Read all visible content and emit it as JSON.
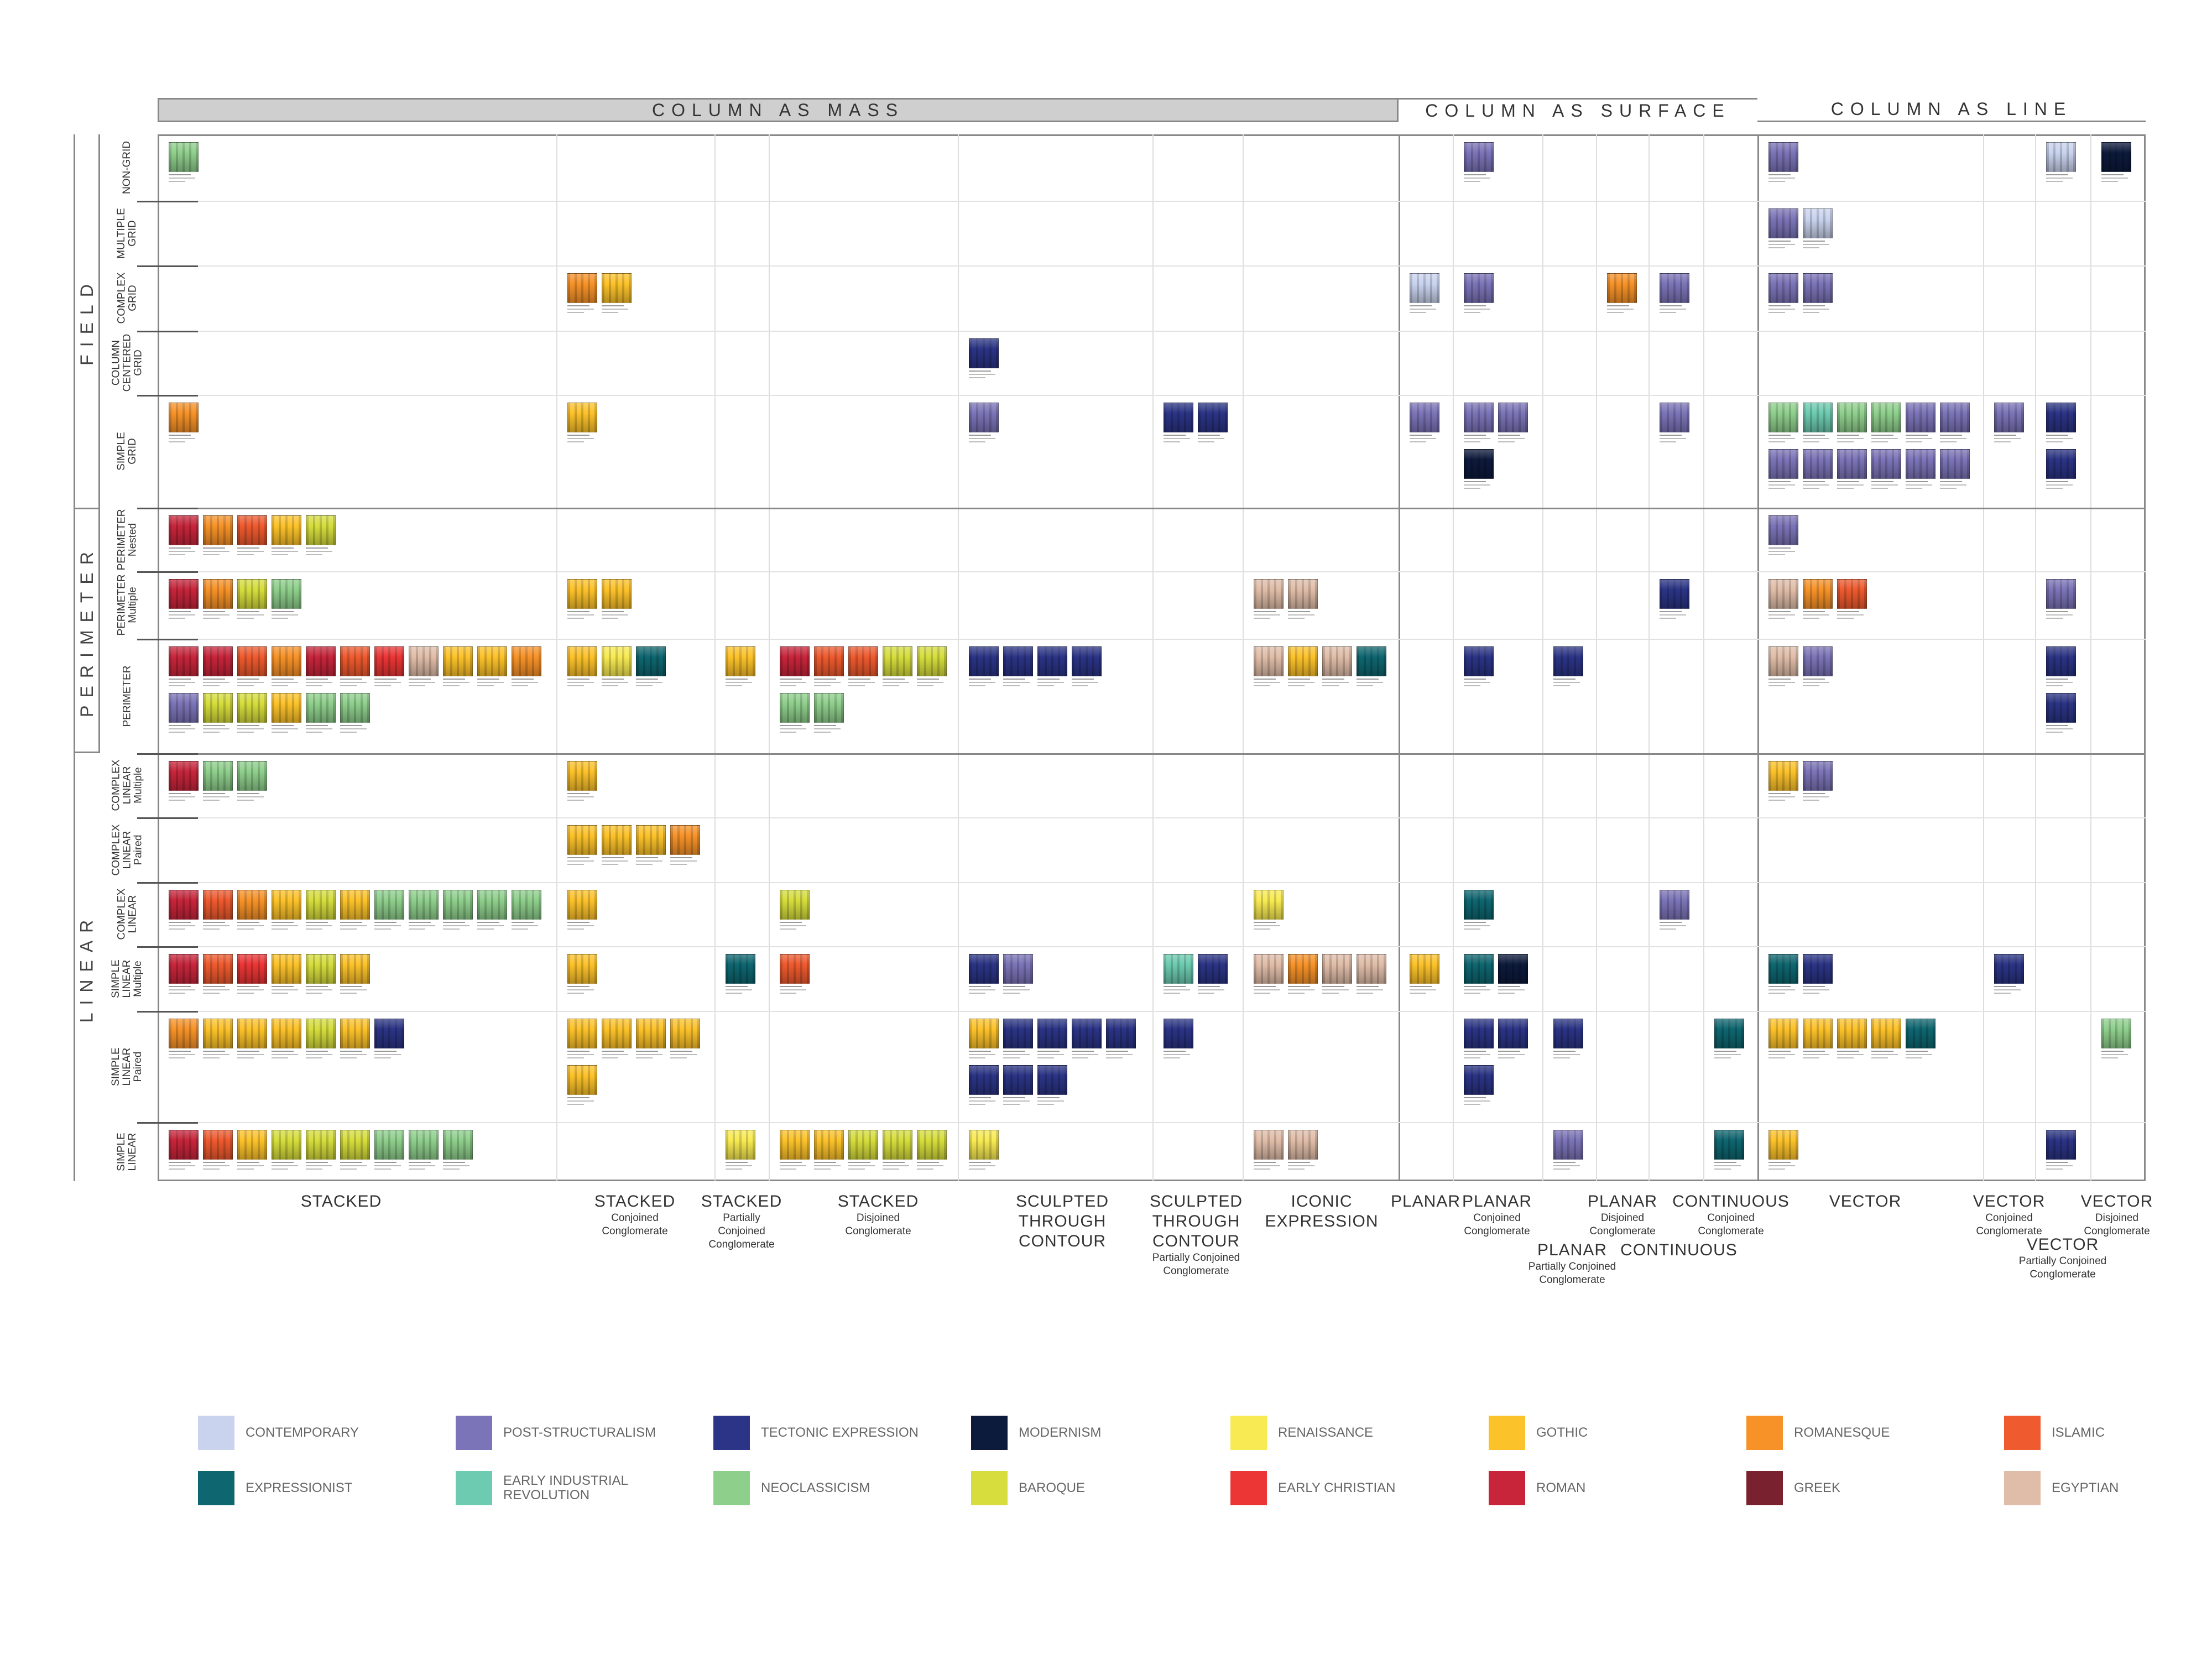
{
  "headers": {
    "mass": "COLUMN AS MASS",
    "surface": "COLUMN AS SURFACE",
    "line": "COLUMN AS LINE"
  },
  "groups": {
    "field": "FIELD",
    "perimeter": "PERIMETER",
    "linear": "LINEAR"
  },
  "rows": [
    {
      "label": "NON-GRID"
    },
    {
      "label": "MULTIPLE\nGRID"
    },
    {
      "label": "COMPLEX\nGRID"
    },
    {
      "label": "COLUMN\nCENTERED\nGRID"
    },
    {
      "label": "SIMPLE GRID"
    },
    {
      "label": "PERIMETER\nNested"
    },
    {
      "label": "PERIMETER\nMultiple"
    },
    {
      "label": "PERIMETER"
    },
    {
      "label": "COMPLEX\nLINEAR\nMultiple"
    },
    {
      "label": "COMPLEX\nLINEAR\nPaired"
    },
    {
      "label": "COMPLEX\nLINEAR"
    },
    {
      "label": "SIMPLE\nLINEAR\nMultiple"
    },
    {
      "label": "SIMPLE\nLINEAR\nPaired"
    },
    {
      "label": "SIMPLE\nLINEAR"
    }
  ],
  "columns": [
    {
      "main": "STACKED",
      "sub": ""
    },
    {
      "main": "STACKED",
      "sub": "Conjoined\nConglomerate"
    },
    {
      "main": "STACKED",
      "sub": "Partially\nConjoined\nConglomerate"
    },
    {
      "main": "STACKED",
      "sub": "Disjoined\nConglomerate"
    },
    {
      "main": "SCULPTED\nTHROUGH\nCONTOUR",
      "sub": ""
    },
    {
      "main": "SCULPTED\nTHROUGH\nCONTOUR",
      "sub": "Partially Conjoined\nConglomerate"
    },
    {
      "main": "ICONIC\nEXPRESSION",
      "sub": ""
    },
    {
      "main": "PLANAR",
      "sub": ""
    },
    {
      "main": "PLANAR",
      "sub": "Conjoined\nConglomerate"
    },
    {
      "main": "PLANAR",
      "sub": "Partially Conjoined\nConglomerate"
    },
    {
      "main": "PLANAR",
      "sub": "Disjoined\nConglomerate"
    },
    {
      "main": "CONTINUOUS",
      "sub": ""
    },
    {
      "main": "CONTINUOUS",
      "sub": "Conjoined\nConglomerate"
    },
    {
      "main": "VECTOR",
      "sub": ""
    },
    {
      "main": "VECTOR",
      "sub": "Conjoined\nConglomerate"
    },
    {
      "main": "VECTOR",
      "sub": "Partially Conjoined\nConglomerate"
    },
    {
      "main": "VECTOR",
      "sub": "Disjoined\nConglomerate"
    }
  ],
  "legend": [
    {
      "label": "CONTEMPORARY",
      "color": "#c9d3ee"
    },
    {
      "label": "POST-STRUCTURALISM",
      "color": "#7b74b8"
    },
    {
      "label": "TECTONIC EXPRESSION",
      "color": "#2b3486"
    },
    {
      "label": "MODERNISM",
      "color": "#0c1a3c"
    },
    {
      "label": "RENAISSANCE",
      "color": "#f8ea52"
    },
    {
      "label": "GOTHIC",
      "color": "#fcc22a"
    },
    {
      "label": "ROMANESQUE",
      "color": "#f79228"
    },
    {
      "label": "ISLAMIC",
      "color": "#ef5a2e"
    },
    {
      "label": "EXPRESSIONIST",
      "color": "#0e6670"
    },
    {
      "label": "EARLY INDUSTRIAL\nREVOLUTION",
      "color": "#6ccbb0"
    },
    {
      "label": "NEOCLASSICISM",
      "color": "#8fcf8c"
    },
    {
      "label": "BAROQUE",
      "color": "#d6dd3c"
    },
    {
      "label": "EARLY CHRISTIAN",
      "color": "#ec3535"
    },
    {
      "label": "ROMAN",
      "color": "#c8253b"
    },
    {
      "label": "GREEK",
      "color": "#7a2130"
    },
    {
      "label": "EGYPTIAN",
      "color": "#e0bda8"
    }
  ],
  "cells": [
    {
      "row": 0,
      "col": 0,
      "styles": [
        "NEOCLASSICISM"
      ]
    },
    {
      "row": 0,
      "col": 8,
      "styles": [
        "POST-STRUCTURALISM"
      ]
    },
    {
      "row": 0,
      "col": 13,
      "styles": [
        "POST-STRUCTURALISM"
      ]
    },
    {
      "row": 0,
      "col": 15,
      "styles": [
        "CONTEMPORARY"
      ]
    },
    {
      "row": 0,
      "col": 16,
      "styles": [
        "MODERNISM"
      ]
    },
    {
      "row": 1,
      "col": 13,
      "styles": [
        "POST-STRUCTURALISM",
        "CONTEMPORARY"
      ]
    },
    {
      "row": 2,
      "col": 1,
      "styles": [
        "ROMANESQUE",
        "GOTHIC"
      ]
    },
    {
      "row": 2,
      "col": 7,
      "styles": [
        "CONTEMPORARY"
      ]
    },
    {
      "row": 2,
      "col": 8,
      "styles": [
        "POST-STRUCTURALISM"
      ]
    },
    {
      "row": 2,
      "col": 10,
      "styles": [
        "ROMANESQUE"
      ]
    },
    {
      "row": 2,
      "col": 11,
      "styles": [
        "POST-STRUCTURALISM"
      ]
    },
    {
      "row": 2,
      "col": 13,
      "styles": [
        "POST-STRUCTURALISM",
        "POST-STRUCTURALISM"
      ]
    },
    {
      "row": 3,
      "col": 4,
      "styles": [
        "TECTONIC EXPRESSION"
      ]
    },
    {
      "row": 4,
      "col": 0,
      "styles": [
        "ROMANESQUE"
      ]
    },
    {
      "row": 4,
      "col": 1,
      "styles": [
        "GOTHIC"
      ]
    },
    {
      "row": 4,
      "col": 4,
      "styles": [
        "POST-STRUCTURALISM"
      ]
    },
    {
      "row": 4,
      "col": 5,
      "styles": [
        "TECTONIC EXPRESSION",
        "TECTONIC EXPRESSION"
      ]
    },
    {
      "row": 4,
      "col": 7,
      "styles": [
        "POST-STRUCTURALISM"
      ]
    },
    {
      "row": 4,
      "col": 8,
      "styles": [
        "POST-STRUCTURALISM",
        "POST-STRUCTURALISM",
        "MODERNISM"
      ]
    },
    {
      "row": 4,
      "col": 11,
      "styles": [
        "POST-STRUCTURALISM"
      ]
    },
    {
      "row": 4,
      "col": 13,
      "styles": [
        "NEOCLASSICISM",
        "EARLY INDUSTRIAL\nREVOLUTION",
        "NEOCLASSICISM",
        "NEOCLASSICISM",
        "POST-STRUCTURALISM",
        "POST-STRUCTURALISM",
        "POST-STRUCTURALISM",
        "POST-STRUCTURALISM",
        "POST-STRUCTURALISM",
        "POST-STRUCTURALISM",
        "POST-STRUCTURALISM",
        "POST-STRUCTURALISM"
      ]
    },
    {
      "row": 4,
      "col": 14,
      "styles": [
        "POST-STRUCTURALISM"
      ]
    },
    {
      "row": 4,
      "col": 15,
      "styles": [
        "TECTONIC EXPRESSION",
        "TECTONIC EXPRESSION"
      ]
    },
    {
      "row": 5,
      "col": 0,
      "styles": [
        "ROMAN",
        "ROMANESQUE",
        "ISLAMIC",
        "GOTHIC",
        "BAROQUE"
      ]
    },
    {
      "row": 5,
      "col": 13,
      "styles": [
        "POST-STRUCTURALISM"
      ]
    },
    {
      "row": 6,
      "col": 0,
      "styles": [
        "ROMAN",
        "ROMANESQUE",
        "BAROQUE",
        "NEOCLASSICISM"
      ]
    },
    {
      "row": 6,
      "col": 1,
      "styles": [
        "GOTHIC",
        "GOTHIC"
      ]
    },
    {
      "row": 6,
      "col": 6,
      "styles": [
        "EGYPTIAN",
        "EGYPTIAN"
      ]
    },
    {
      "row": 6,
      "col": 11,
      "styles": [
        "TECTONIC EXPRESSION"
      ]
    },
    {
      "row": 6,
      "col": 13,
      "styles": [
        "EGYPTIAN",
        "ROMANESQUE",
        "ISLAMIC"
      ]
    },
    {
      "row": 6,
      "col": 15,
      "styles": [
        "POST-STRUCTURALISM"
      ]
    },
    {
      "row": 7,
      "col": 0,
      "styles": [
        "ROMAN",
        "ROMAN",
        "ISLAMIC",
        "ROMANESQUE",
        "ROMAN",
        "ISLAMIC",
        "EARLY CHRISTIAN",
        "EGYPTIAN",
        "GOTHIC",
        "GOTHIC",
        "ROMANESQUE",
        "POST-STRUCTURALISM",
        "BAROQUE",
        "BAROQUE",
        "GOTHIC",
        "NEOCLASSICISM",
        "NEOCLASSICISM"
      ]
    },
    {
      "row": 7,
      "col": 1,
      "styles": [
        "GOTHIC",
        "RENAISSANCE",
        "EXPRESSIONIST"
      ]
    },
    {
      "row": 7,
      "col": 2,
      "styles": [
        "GOTHIC"
      ]
    },
    {
      "row": 7,
      "col": 3,
      "styles": [
        "ROMAN",
        "ISLAMIC",
        "ISLAMIC",
        "BAROQUE",
        "BAROQUE",
        "NEOCLASSICISM",
        "NEOCLASSICISM"
      ]
    },
    {
      "row": 7,
      "col": 4,
      "styles": [
        "TECTONIC EXPRESSION",
        "TECTONIC EXPRESSION",
        "TECTONIC EXPRESSION",
        "TECTONIC EXPRESSION"
      ]
    },
    {
      "row": 7,
      "col": 6,
      "styles": [
        "EGYPTIAN",
        "GOTHIC",
        "EGYPTIAN",
        "EXPRESSIONIST"
      ]
    },
    {
      "row": 7,
      "col": 8,
      "styles": [
        "TECTONIC EXPRESSION"
      ]
    },
    {
      "row": 7,
      "col": 9,
      "styles": [
        "TECTONIC EXPRESSION"
      ]
    },
    {
      "row": 7,
      "col": 13,
      "styles": [
        "EGYPTIAN",
        "POST-STRUCTURALISM"
      ]
    },
    {
      "row": 7,
      "col": 15,
      "styles": [
        "TECTONIC EXPRESSION",
        "TECTONIC EXPRESSION"
      ]
    },
    {
      "row": 8,
      "col": 0,
      "styles": [
        "ROMAN",
        "NEOCLASSICISM",
        "NEOCLASSICISM"
      ]
    },
    {
      "row": 8,
      "col": 1,
      "styles": [
        "GOTHIC"
      ]
    },
    {
      "row": 8,
      "col": 13,
      "styles": [
        "GOTHIC",
        "POST-STRUCTURALISM"
      ]
    },
    {
      "row": 9,
      "col": 1,
      "styles": [
        "GOTHIC",
        "GOTHIC",
        "GOTHIC",
        "ROMANESQUE"
      ]
    },
    {
      "row": 10,
      "col": 0,
      "styles": [
        "ROMAN",
        "ISLAMIC",
        "ROMANESQUE",
        "GOTHIC",
        "BAROQUE",
        "GOTHIC",
        "NEOCLASSICISM",
        "NEOCLASSICISM",
        "NEOCLASSICISM",
        "NEOCLASSICISM",
        "NEOCLASSICISM"
      ]
    },
    {
      "row": 10,
      "col": 1,
      "styles": [
        "GOTHIC"
      ]
    },
    {
      "row": 10,
      "col": 3,
      "styles": [
        "BAROQUE"
      ]
    },
    {
      "row": 10,
      "col": 6,
      "styles": [
        "RENAISSANCE"
      ]
    },
    {
      "row": 10,
      "col": 8,
      "styles": [
        "EXPRESSIONIST"
      ]
    },
    {
      "row": 10,
      "col": 11,
      "styles": [
        "POST-STRUCTURALISM"
      ]
    },
    {
      "row": 11,
      "col": 0,
      "styles": [
        "ROMAN",
        "ISLAMIC",
        "EARLY CHRISTIAN",
        "GOTHIC",
        "BAROQUE",
        "GOTHIC"
      ]
    },
    {
      "row": 11,
      "col": 1,
      "styles": [
        "GOTHIC"
      ]
    },
    {
      "row": 11,
      "col": 2,
      "styles": [
        "EXPRESSIONIST"
      ]
    },
    {
      "row": 11,
      "col": 3,
      "styles": [
        "ISLAMIC"
      ]
    },
    {
      "row": 11,
      "col": 4,
      "styles": [
        "TECTONIC EXPRESSION",
        "POST-STRUCTURALISM"
      ]
    },
    {
      "row": 11,
      "col": 5,
      "styles": [
        "EARLY INDUSTRIAL\nREVOLUTION",
        "TECTONIC EXPRESSION"
      ]
    },
    {
      "row": 11,
      "col": 6,
      "styles": [
        "EGYPTIAN",
        "ROMANESQUE",
        "EGYPTIAN",
        "EGYPTIAN"
      ]
    },
    {
      "row": 11,
      "col": 7,
      "styles": [
        "GOTHIC"
      ]
    },
    {
      "row": 11,
      "col": 8,
      "styles": [
        "EXPRESSIONIST",
        "MODERNISM"
      ]
    },
    {
      "row": 11,
      "col": 13,
      "styles": [
        "EXPRESSIONIST",
        "TECTONIC EXPRESSION"
      ]
    },
    {
      "row": 11,
      "col": 14,
      "styles": [
        "TECTONIC EXPRESSION"
      ]
    },
    {
      "row": 12,
      "col": 0,
      "styles": [
        "ROMANESQUE",
        "GOTHIC",
        "GOTHIC",
        "GOTHIC",
        "BAROQUE",
        "GOTHIC",
        "TECTONIC EXPRESSION"
      ]
    },
    {
      "row": 12,
      "col": 1,
      "styles": [
        "GOTHIC",
        "GOTHIC",
        "GOTHIC",
        "GOTHIC",
        "GOTHIC"
      ]
    },
    {
      "row": 12,
      "col": 4,
      "styles": [
        "GOTHIC",
        "TECTONIC EXPRESSION",
        "TECTONIC EXPRESSION",
        "TECTONIC EXPRESSION",
        "TECTONIC EXPRESSION",
        "TECTONIC EXPRESSION",
        "TECTONIC EXPRESSION",
        "TECTONIC EXPRESSION"
      ]
    },
    {
      "row": 12,
      "col": 5,
      "styles": [
        "TECTONIC EXPRESSION"
      ]
    },
    {
      "row": 12,
      "col": 8,
      "styles": [
        "TECTONIC EXPRESSION",
        "TECTONIC EXPRESSION",
        "TECTONIC EXPRESSION"
      ]
    },
    {
      "row": 12,
      "col": 9,
      "styles": [
        "TECTONIC EXPRESSION"
      ]
    },
    {
      "row": 12,
      "col": 12,
      "styles": [
        "EXPRESSIONIST"
      ]
    },
    {
      "row": 12,
      "col": 13,
      "styles": [
        "GOTHIC",
        "GOTHIC",
        "GOTHIC",
        "GOTHIC",
        "EXPRESSIONIST"
      ]
    },
    {
      "row": 12,
      "col": 16,
      "styles": [
        "NEOCLASSICISM"
      ]
    },
    {
      "row": 13,
      "col": 0,
      "styles": [
        "ROMAN",
        "ISLAMIC",
        "GOTHIC",
        "BAROQUE",
        "BAROQUE",
        "BAROQUE",
        "NEOCLASSICISM",
        "NEOCLASSICISM",
        "NEOCLASSICISM"
      ]
    },
    {
      "row": 13,
      "col": 2,
      "styles": [
        "RENAISSANCE"
      ]
    },
    {
      "row": 13,
      "col": 3,
      "styles": [
        "GOTHIC",
        "GOTHIC",
        "BAROQUE",
        "BAROQUE",
        "BAROQUE"
      ]
    },
    {
      "row": 13,
      "col": 4,
      "styles": [
        "RENAISSANCE"
      ]
    },
    {
      "row": 13,
      "col": 6,
      "styles": [
        "EGYPTIAN",
        "EGYPTIAN"
      ]
    },
    {
      "row": 13,
      "col": 9,
      "styles": [
        "POST-STRUCTURALISM"
      ]
    },
    {
      "row": 13,
      "col": 12,
      "styles": [
        "EXPRESSIONIST"
      ]
    },
    {
      "row": 13,
      "col": 13,
      "styles": [
        "GOTHIC"
      ]
    },
    {
      "row": 13,
      "col": 15,
      "styles": [
        "TECTONIC EXPRESSION"
      ]
    }
  ]
}
